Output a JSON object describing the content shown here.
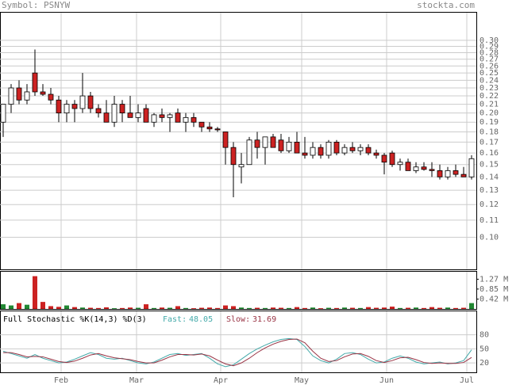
{
  "header": {
    "symbol": "Symbol: PSNYW",
    "site": "stockta.com"
  },
  "chart_data": [
    {
      "type": "candlestick",
      "log_scale": true,
      "grid": true,
      "up_color": "#ffffff",
      "down_color": "#cc2222",
      "wick_color": "#000000",
      "xlim": [
        -0.4,
        59.6
      ],
      "xticks": [
        {
          "value": 7.3,
          "label": "Feb"
        },
        {
          "value": 16.8,
          "label": "Mar"
        },
        {
          "value": 27.4,
          "label": "Apr"
        },
        {
          "value": 37.6,
          "label": "May"
        },
        {
          "value": 48.3,
          "label": "Jun"
        },
        {
          "value": 58.4,
          "label": "Jul"
        }
      ],
      "ylim": [
        0.0836,
        0.35
      ],
      "yticks": [
        {
          "value": 0.1,
          "label": "0.10"
        },
        0.11,
        0.12,
        0.13,
        0.14,
        0.15,
        0.16,
        0.17,
        0.18,
        0.19,
        {
          "value": 0.2,
          "label": "0.20"
        },
        0.21,
        0.22,
        0.23,
        0.24,
        0.25,
        0.26,
        0.27,
        0.28,
        0.29,
        {
          "value": 0.3,
          "label": "0.30"
        }
      ],
      "open": [
        0.19,
        0.21,
        0.23,
        0.215,
        0.25,
        0.225,
        0.222,
        0.215,
        0.2,
        0.21,
        0.205,
        0.22,
        0.205,
        0.2,
        0.19,
        0.21,
        0.2,
        0.195,
        0.205,
        0.19,
        0.198,
        0.195,
        0.2,
        0.19,
        0.195,
        0.19,
        0.185,
        0.183,
        0.18,
        0.165,
        0.148,
        0.15,
        0.172,
        0.165,
        0.175,
        0.172,
        0.162,
        0.17,
        0.16,
        0.158,
        0.165,
        0.158,
        0.17,
        0.16,
        0.165,
        0.162,
        0.165,
        0.16,
        0.158,
        0.16,
        0.15,
        0.152,
        0.145,
        0.148,
        0.146,
        0.145,
        0.14,
        0.145,
        0.142,
        0.14
      ],
      "high": [
        0.21,
        0.235,
        0.24,
        0.235,
        0.285,
        0.235,
        0.23,
        0.22,
        0.215,
        0.215,
        0.25,
        0.225,
        0.21,
        0.215,
        0.22,
        0.215,
        0.22,
        0.21,
        0.21,
        0.2,
        0.205,
        0.2,
        0.205,
        0.2,
        0.2,
        0.19,
        0.19,
        0.185,
        0.18,
        0.17,
        0.16,
        0.175,
        0.18,
        0.175,
        0.178,
        0.178,
        0.175,
        0.18,
        0.175,
        0.17,
        0.168,
        0.172,
        0.172,
        0.168,
        0.17,
        0.168,
        0.168,
        0.163,
        0.16,
        0.162,
        0.155,
        0.155,
        0.152,
        0.152,
        0.152,
        0.15,
        0.148,
        0.15,
        0.148,
        0.158
      ],
      "low": [
        0.175,
        0.2,
        0.21,
        0.21,
        0.22,
        0.22,
        0.21,
        0.19,
        0.19,
        0.19,
        0.2,
        0.2,
        0.195,
        0.19,
        0.185,
        0.19,
        0.195,
        0.19,
        0.19,
        0.185,
        0.19,
        0.18,
        0.19,
        0.18,
        0.185,
        0.18,
        0.18,
        0.18,
        0.15,
        0.125,
        0.135,
        0.15,
        0.155,
        0.15,
        0.165,
        0.16,
        0.16,
        0.16,
        0.155,
        0.155,
        0.155,
        0.155,
        0.158,
        0.158,
        0.16,
        0.158,
        0.158,
        0.155,
        0.142,
        0.148,
        0.145,
        0.145,
        0.143,
        0.145,
        0.14,
        0.138,
        0.138,
        0.14,
        0.14,
        0.138
      ],
      "close": [
        0.21,
        0.23,
        0.215,
        0.225,
        0.225,
        0.222,
        0.215,
        0.2,
        0.21,
        0.205,
        0.22,
        0.205,
        0.2,
        0.19,
        0.21,
        0.2,
        0.195,
        0.2,
        0.19,
        0.198,
        0.195,
        0.198,
        0.19,
        0.195,
        0.19,
        0.185,
        0.183,
        0.182,
        0.165,
        0.15,
        0.15,
        0.172,
        0.165,
        0.175,
        0.165,
        0.162,
        0.17,
        0.16,
        0.158,
        0.165,
        0.158,
        0.17,
        0.16,
        0.165,
        0.162,
        0.165,
        0.16,
        0.158,
        0.152,
        0.15,
        0.152,
        0.145,
        0.148,
        0.146,
        0.145,
        0.14,
        0.145,
        0.142,
        0.14,
        0.155
      ]
    },
    {
      "type": "bar",
      "up_color": "#228833",
      "down_color": "#cc2222",
      "ylim": [
        0,
        1590000
      ],
      "yticks": [
        {
          "value": 420000,
          "label": "0.42 M"
        },
        {
          "value": 850000,
          "label": "0.85 M"
        },
        {
          "value": 1270000,
          "label": "1.27 M"
        }
      ],
      "values": [
        200000,
        150000,
        250000,
        180000,
        1400000,
        300000,
        120000,
        90000,
        150000,
        80000,
        60000,
        50000,
        40000,
        70000,
        30000,
        40000,
        60000,
        50000,
        200000,
        40000,
        60000,
        50000,
        120000,
        40000,
        30000,
        50000,
        60000,
        40000,
        150000,
        120000,
        60000,
        40000,
        50000,
        40000,
        60000,
        50000,
        40000,
        80000,
        40000,
        60000,
        30000,
        50000,
        40000,
        60000,
        50000,
        40000,
        80000,
        50000,
        60000,
        100000,
        40000,
        50000,
        60000,
        40000,
        80000,
        50000,
        60000,
        40000,
        50000,
        250000
      ]
    },
    {
      "type": "line",
      "title": "Full Stochastic %K(14,3) %D(3)",
      "ylim": [
        0,
        130
      ],
      "yticks": [
        20,
        50,
        80
      ],
      "grid": true,
      "series": [
        {
          "name": "Fast:",
          "color": "#44aaaa",
          "values": [
            45,
            40,
            35,
            30,
            38,
            30,
            25,
            20,
            22,
            28,
            35,
            42,
            38,
            30,
            28,
            30,
            25,
            20,
            18,
            22,
            30,
            38,
            40,
            36,
            38,
            40,
            30,
            18,
            12,
            16,
            28,
            40,
            50,
            58,
            65,
            70,
            72,
            70,
            55,
            35,
            25,
            20,
            28,
            40,
            42,
            38,
            28,
            20,
            22,
            30,
            35,
            30,
            22,
            18,
            20,
            22,
            18,
            20,
            25,
            48.05
          ]
        },
        {
          "name": "Slow:",
          "color": "#993344",
          "values": [
            42,
            42,
            38,
            33,
            34,
            33,
            28,
            23,
            21,
            24,
            30,
            37,
            40,
            35,
            31,
            29,
            27,
            23,
            20,
            20,
            26,
            33,
            38,
            38,
            37,
            39,
            35,
            26,
            18,
            14,
            20,
            30,
            42,
            52,
            60,
            66,
            70,
            71,
            63,
            45,
            30,
            23,
            25,
            33,
            39,
            40,
            34,
            25,
            21,
            25,
            31,
            32,
            27,
            21,
            19,
            20,
            19,
            19,
            21,
            31.69
          ]
        }
      ]
    }
  ]
}
